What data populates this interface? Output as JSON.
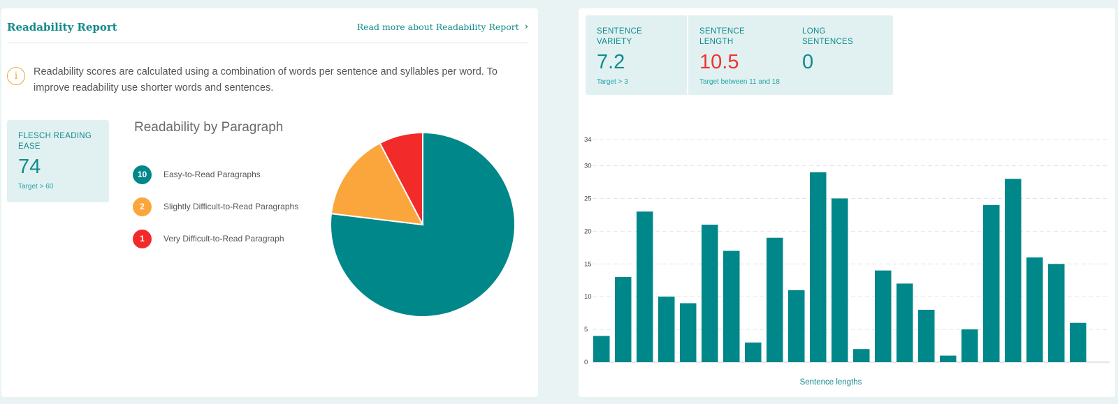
{
  "report": {
    "title": "Readability Report",
    "read_more": "Read more about Readability Report",
    "read_more_icon": "chevron-right-icon",
    "info_icon_glyph": "i",
    "info_text": "Readability scores are calculated using a combination of words per sentence and syllables per word. To improve readability use shorter words and sentences."
  },
  "flesch": {
    "label": "FLESCH READING EASE",
    "value": "74",
    "target": "Target > 60"
  },
  "paragraphs": {
    "title": "Readability by Paragraph",
    "legend": [
      {
        "count": "10",
        "label": "Easy-to-Read Paragraphs",
        "color": "#00878a"
      },
      {
        "count": "2",
        "label": "Slightly Difficult-to-Read Paragraphs",
        "color": "#fba63c"
      },
      {
        "count": "1",
        "label": "Very Difficult-to-Read Paragraph",
        "color": "#f22a2a"
      }
    ]
  },
  "metrics": {
    "variety": {
      "label": "SENTENCE VARIETY",
      "value": "7.2",
      "target": "Target > 3"
    },
    "length": {
      "label": "SENTENCE LENGTH",
      "value": "10.5",
      "target": "Target between 11 and 18"
    },
    "long": {
      "label": "LONG SENTENCES",
      "value": "0"
    }
  },
  "colors": {
    "accent": "#138a8a",
    "bar": "#00878a",
    "warning": "#f2322f"
  },
  "chart_data": [
    {
      "type": "pie",
      "title": "Readability by Paragraph",
      "categories": [
        "Easy-to-Read Paragraphs",
        "Slightly Difficult-to-Read Paragraphs",
        "Very Difficult-to-Read Paragraph"
      ],
      "values": [
        10,
        2,
        1
      ],
      "colors": [
        "#00878a",
        "#fba63c",
        "#f22a2a"
      ]
    },
    {
      "type": "bar",
      "title": "",
      "xlabel": "Sentence lengths",
      "ylabel": "",
      "ylim": [
        0,
        34
      ],
      "yticks": [
        0,
        5,
        10,
        15,
        20,
        25,
        30,
        34
      ],
      "grid": true,
      "values": [
        4,
        13,
        23,
        10,
        9,
        21,
        17,
        3,
        19,
        11,
        29,
        25,
        2,
        14,
        12,
        8,
        1,
        5,
        24,
        28,
        16,
        15,
        6
      ]
    }
  ]
}
